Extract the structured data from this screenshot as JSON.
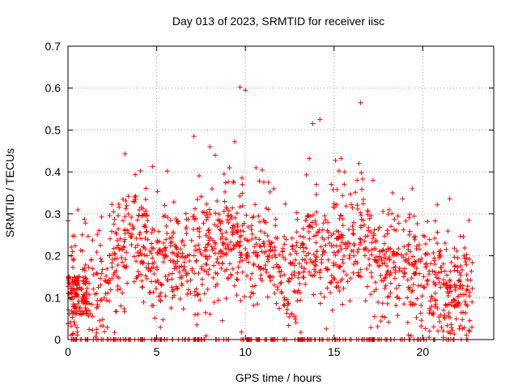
{
  "chart_data": {
    "type": "scatter",
    "title": "Day 013 of 2023, SRMTID for receiver iisc",
    "xlabel": "GPS time / hours",
    "ylabel": "SRMTID / TECUs",
    "xlim": [
      0,
      24
    ],
    "ylim": [
      0,
      0.7
    ],
    "x_ticks": [
      0,
      5,
      10,
      15,
      20
    ],
    "y_ticks": [
      0,
      0.1,
      0.2,
      0.3,
      0.4,
      0.5,
      0.6,
      0.7
    ],
    "x_tick_labels": [
      "0",
      "5",
      "10",
      "15",
      "20"
    ],
    "y_tick_labels": [
      "0",
      "0.1",
      "0.2",
      "0.3",
      "0.4",
      "0.5",
      "0.6",
      "0.7"
    ],
    "grid": true,
    "marker": "+",
    "series": [
      {
        "name": "SRMTID",
        "color": "#ff0000",
        "profile": [
          [
            0.0,
            0.09
          ],
          [
            0.5,
            0.12
          ],
          [
            1.0,
            0.15
          ],
          [
            1.5,
            0.13
          ],
          [
            2.0,
            0.12
          ],
          [
            2.5,
            0.16
          ],
          [
            3.0,
            0.22
          ],
          [
            3.5,
            0.26
          ],
          [
            4.0,
            0.24
          ],
          [
            4.5,
            0.21
          ],
          [
            5.0,
            0.18
          ],
          [
            5.5,
            0.22
          ],
          [
            6.0,
            0.19
          ],
          [
            6.5,
            0.17
          ],
          [
            7.0,
            0.2
          ],
          [
            7.5,
            0.22
          ],
          [
            8.0,
            0.22
          ],
          [
            8.5,
            0.23
          ],
          [
            9.0,
            0.24
          ],
          [
            9.5,
            0.24
          ],
          [
            10.0,
            0.22
          ],
          [
            10.5,
            0.21
          ],
          [
            11.0,
            0.2
          ],
          [
            11.5,
            0.2
          ],
          [
            12.0,
            0.17
          ],
          [
            12.5,
            0.15
          ],
          [
            13.0,
            0.18
          ],
          [
            13.5,
            0.22
          ],
          [
            14.0,
            0.2
          ],
          [
            14.5,
            0.19
          ],
          [
            15.0,
            0.22
          ],
          [
            15.5,
            0.24
          ],
          [
            16.0,
            0.25
          ],
          [
            16.5,
            0.24
          ],
          [
            17.0,
            0.22
          ],
          [
            17.5,
            0.2
          ],
          [
            18.0,
            0.18
          ],
          [
            18.5,
            0.17
          ],
          [
            19.0,
            0.17
          ],
          [
            19.5,
            0.16
          ],
          [
            20.0,
            0.14
          ],
          [
            20.5,
            0.12
          ],
          [
            21.0,
            0.15
          ],
          [
            21.5,
            0.1
          ],
          [
            22.0,
            0.12
          ],
          [
            22.5,
            0.13
          ],
          [
            22.8,
            0.12
          ]
        ],
        "outliers": [
          [
            9.7,
            0.602
          ],
          [
            10.0,
            0.595
          ],
          [
            16.5,
            0.565
          ],
          [
            14.2,
            0.525
          ],
          [
            13.8,
            0.515
          ],
          [
            7.1,
            0.485
          ],
          [
            9.4,
            0.472
          ],
          [
            8.0,
            0.46
          ],
          [
            13.6,
            0.432
          ],
          [
            16.4,
            0.42
          ],
          [
            8.3,
            0.44
          ],
          [
            8.8,
            0.395
          ],
          [
            9.1,
            0.41
          ],
          [
            10.6,
            0.41
          ],
          [
            5.6,
            0.402
          ],
          [
            14.0,
            0.37
          ],
          [
            15.6,
            0.4
          ],
          [
            17.2,
            0.38
          ],
          [
            18.3,
            0.35
          ],
          [
            3.1,
            0.335
          ]
        ],
        "zeros_x_range": [
          0.2,
          22.6
        ]
      }
    ]
  }
}
